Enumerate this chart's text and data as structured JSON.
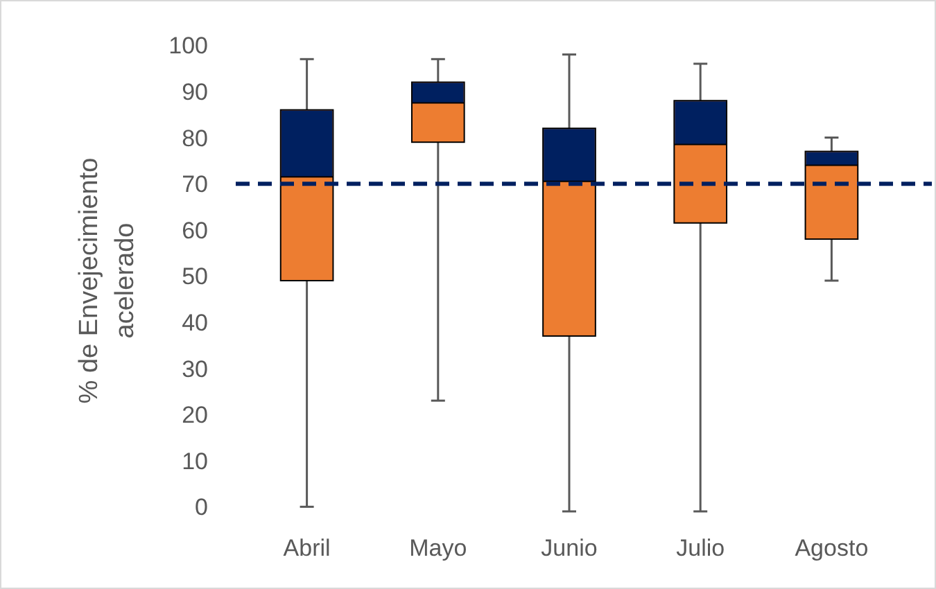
{
  "chart_data": {
    "type": "box",
    "ylabel": "% de Envejecimiento acelerado",
    "categories": [
      "Abril",
      "Mayo",
      "Junio",
      "Julio",
      "Agosto"
    ],
    "ylim": [
      0,
      100
    ],
    "yticks": [
      0,
      10,
      20,
      30,
      40,
      50,
      60,
      70,
      80,
      90,
      100
    ],
    "series": [
      {
        "color": "#ed7d31",
        "boxes": [
          {
            "low": 1,
            "q1": 50,
            "median": 72.5,
            "q3": 87,
            "high": 98
          },
          {
            "low": 24,
            "q1": 80,
            "median": 88.5,
            "q3": 93,
            "high": 98
          },
          {
            "low": 0,
            "q1": 38,
            "median": 71.5,
            "q3": 83,
            "high": 99
          },
          {
            "low": 0,
            "q1": 62.5,
            "median": 79.5,
            "q3": 89,
            "high": 97
          },
          {
            "low": 50,
            "q1": 59,
            "median": 75,
            "q3": 78,
            "high": 81
          }
        ]
      }
    ],
    "ref_lines": [
      {
        "axis": "y",
        "value": 71,
        "color": "#002060",
        "line_style": "dashed"
      }
    ]
  }
}
